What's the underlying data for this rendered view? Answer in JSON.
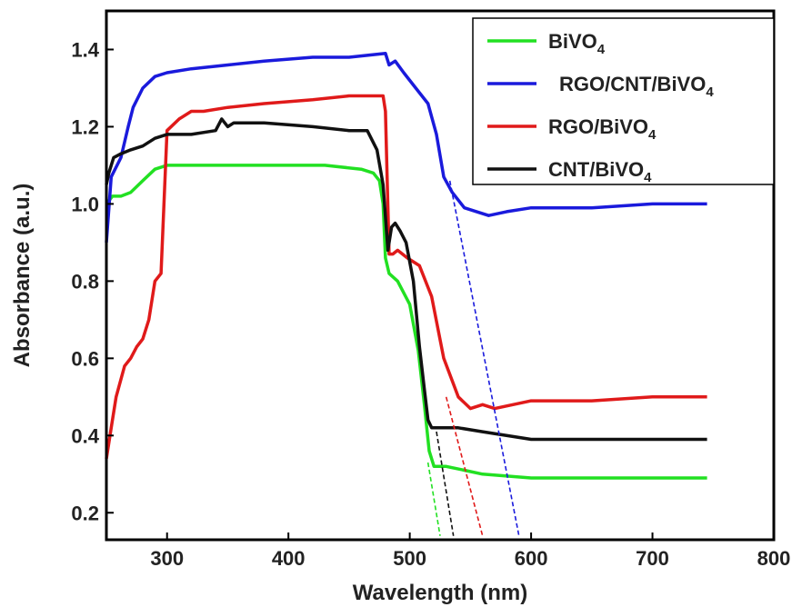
{
  "chart_data": {
    "type": "line",
    "xlabel": "Wavelength (nm)",
    "ylabel": "Absorbance (a.u.)",
    "xlim": [
      250,
      800
    ],
    "ylim": [
      0.13,
      1.5
    ],
    "xticks": [
      300,
      400,
      500,
      600,
      700,
      800
    ],
    "yticks": [
      0.2,
      0.4,
      0.6,
      0.8,
      1.0,
      1.2,
      1.4
    ],
    "xtick_labels": [
      "300",
      "400",
      "500",
      "600",
      "700",
      "800"
    ],
    "ytick_labels": [
      "0.2",
      "0.4",
      "0.6",
      "0.8",
      "1.0",
      "1.2",
      "1.4"
    ],
    "legend_position": "top-right",
    "grid": false,
    "series": [
      {
        "name": "BiVO4",
        "legend_main": "BiVO",
        "legend_sub": "4",
        "color": "#22e022",
        "x": [
          250,
          255,
          262,
          270,
          280,
          290,
          300,
          310,
          330,
          350,
          370,
          400,
          430,
          460,
          470,
          475,
          478,
          480,
          483,
          490,
          500,
          507,
          512,
          516,
          520,
          530,
          545,
          560,
          600,
          700,
          745
        ],
        "y": [
          1.0,
          1.02,
          1.02,
          1.03,
          1.06,
          1.09,
          1.1,
          1.1,
          1.1,
          1.1,
          1.1,
          1.1,
          1.1,
          1.09,
          1.08,
          1.06,
          1.0,
          0.86,
          0.82,
          0.8,
          0.74,
          0.62,
          0.48,
          0.36,
          0.32,
          0.32,
          0.31,
          0.3,
          0.29,
          0.29,
          0.29
        ]
      },
      {
        "name": "RGO/CNT/BiVO4",
        "legend_main": "RGO/CNT/BiVO",
        "legend_sub": "4",
        "color": "#1a1adc",
        "x": [
          250,
          254,
          262,
          268,
          272,
          280,
          290,
          300,
          320,
          350,
          380,
          420,
          450,
          480,
          483,
          488,
          495,
          505,
          515,
          522,
          528,
          535,
          545,
          555,
          565,
          580,
          600,
          650,
          700,
          745
        ],
        "y": [
          0.9,
          1.07,
          1.12,
          1.2,
          1.25,
          1.3,
          1.33,
          1.34,
          1.35,
          1.36,
          1.37,
          1.38,
          1.38,
          1.39,
          1.36,
          1.37,
          1.34,
          1.3,
          1.26,
          1.18,
          1.07,
          1.03,
          0.99,
          0.98,
          0.97,
          0.98,
          0.99,
          0.99,
          1.0,
          1.0
        ]
      },
      {
        "name": "RGO/BiVO4",
        "legend_main": "RGO/BiVO",
        "legend_sub": "4",
        "color": "#e01a1a",
        "x": [
          250,
          254,
          258,
          265,
          270,
          275,
          280,
          285,
          290,
          295,
          300,
          310,
          320,
          330,
          350,
          380,
          420,
          450,
          478,
          480,
          483,
          486,
          490,
          498,
          508,
          518,
          528,
          540,
          550,
          560,
          570,
          600,
          650,
          700,
          745
        ],
        "y": [
          0.34,
          0.42,
          0.5,
          0.58,
          0.6,
          0.63,
          0.65,
          0.7,
          0.8,
          0.82,
          1.19,
          1.22,
          1.24,
          1.24,
          1.25,
          1.26,
          1.27,
          1.28,
          1.28,
          1.24,
          0.87,
          0.87,
          0.88,
          0.86,
          0.84,
          0.76,
          0.6,
          0.5,
          0.47,
          0.48,
          0.47,
          0.49,
          0.49,
          0.5,
          0.5
        ]
      },
      {
        "name": "CNT/BiVO4",
        "legend_main": "CNT/BiVO",
        "legend_sub": "4",
        "color": "#111111",
        "x": [
          250,
          252,
          256,
          262,
          270,
          280,
          290,
          300,
          320,
          340,
          345,
          350,
          355,
          380,
          420,
          450,
          465,
          473,
          478,
          482,
          485,
          488,
          492,
          497,
          503,
          508,
          512,
          515,
          518,
          525,
          540,
          560,
          600,
          700,
          745
        ],
        "y": [
          1.05,
          1.08,
          1.12,
          1.13,
          1.14,
          1.15,
          1.17,
          1.18,
          1.18,
          1.19,
          1.22,
          1.2,
          1.21,
          1.21,
          1.2,
          1.19,
          1.19,
          1.14,
          1.05,
          0.88,
          0.94,
          0.95,
          0.93,
          0.9,
          0.8,
          0.63,
          0.52,
          0.44,
          0.42,
          0.42,
          0.42,
          0.41,
          0.39,
          0.39,
          0.39
        ]
      }
    ],
    "tangent_lines": [
      {
        "name": "BiVO4",
        "color": "#22e022",
        "x": [
          515,
          525
        ],
        "y": [
          0.33,
          0.14
        ]
      },
      {
        "name": "CNT/BiVO4",
        "color": "#111111",
        "x": [
          522,
          536
        ],
        "y": [
          0.41,
          0.14
        ]
      },
      {
        "name": "RGO/BiVO4",
        "color": "#e01a1a",
        "x": [
          530,
          560
        ],
        "y": [
          0.5,
          0.14
        ]
      },
      {
        "name": "RGO/CNT/BiVO4",
        "color": "#1a1adc",
        "x": [
          533,
          590
        ],
        "y": [
          1.06,
          0.14
        ]
      }
    ]
  }
}
